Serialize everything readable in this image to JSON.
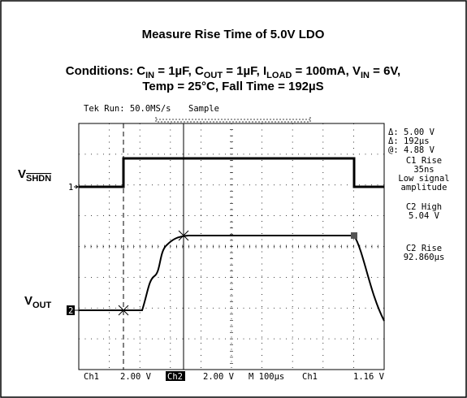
{
  "title": "Measure Rise Time of 5.0V LDO",
  "conditions": [
    [
      {
        "text": "Conditions: C"
      },
      {
        "sub": "IN"
      },
      {
        "text": " = 1µF, C"
      },
      {
        "sub": "OUT"
      },
      {
        "text": " = 1µF, I"
      },
      {
        "sub": "LOAD"
      },
      {
        "text": " = 100mA, V"
      },
      {
        "sub": "IN"
      },
      {
        "text": " = 6V,"
      }
    ],
    [
      {
        "text": "Temp = 25°C, Fall Time = 192µS"
      }
    ]
  ],
  "scope": {
    "header": {
      "run": "Tek Run: 50.0MS/s",
      "mode": "Sample"
    },
    "labels": {
      "vshdn": [
        {
          "text": "V"
        },
        {
          "sub": "SHDN"
        }
      ],
      "vout": [
        {
          "text": "V"
        },
        {
          "sub": "OUT"
        }
      ]
    },
    "markers": [
      "1",
      "2"
    ],
    "readouts": [
      "Δ: 5.00 V",
      "Δ: 192µs",
      "@: 4.88 V",
      "C1 Rise",
      "35ns",
      "Low signal",
      "amplitude",
      "C2 High",
      "5.04 V",
      "C2 Rise",
      "92.860µs"
    ],
    "status": [
      "Ch1",
      "2.00 V",
      "Ch2",
      "2.00 V",
      "M 100µs",
      "Ch1",
      "1.16 V"
    ]
  }
}
